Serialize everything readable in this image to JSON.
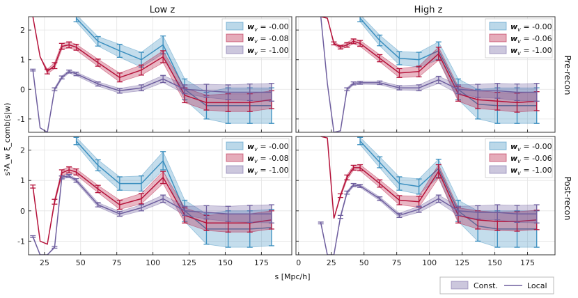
{
  "chart_data": {
    "type": "line",
    "column_titles": [
      "Low z",
      "High z"
    ],
    "row_labels": [
      "Pre-recon",
      "Post-recon"
    ],
    "xlabel": "s [Mpc/h]",
    "ylabel": "s²A_w ξ_comb(s|w)",
    "xlim_left": [
      14,
      196
    ],
    "xlim_right": [
      -2,
      196
    ],
    "ylim": [
      -1.45,
      2.45
    ],
    "xticks_left": [
      "25",
      "50",
      "75",
      "100",
      "125",
      "150",
      "175"
    ],
    "xticks_right": [
      "0",
      "25",
      "50",
      "75",
      "100",
      "125",
      "150",
      "175"
    ],
    "yticks": [
      "-1",
      "0",
      "1",
      "2"
    ],
    "grid": true,
    "bottom_legend": {
      "band_label": "Const.",
      "line_label": "Local"
    },
    "colors": {
      "blue": "#3b8fbf",
      "red": "#b5123a",
      "purple": "#6e5e9e"
    },
    "series_keys": [
      "blue",
      "red",
      "purple"
    ],
    "panels": [
      {
        "id": "low-pre",
        "legend": [
          "-0.00",
          "-0.08",
          "-1.00"
        ],
        "series": [
          {
            "key": "blue",
            "x": [
              47,
              62,
              77,
              92,
              107,
              122,
              137,
              152,
              167,
              182
            ],
            "y": [
              2.4,
              1.62,
              1.3,
              1.0,
              1.5,
              0.0,
              -0.55,
              -0.55,
              -0.55,
              -0.55
            ],
            "err": [
              0.12,
              0.16,
              0.22,
              0.25,
              0.3,
              0.35,
              0.45,
              0.6,
              0.6,
              0.6
            ]
          },
          {
            "key": "red",
            "x": [
              17,
              22,
              27,
              32,
              37,
              42,
              47,
              62,
              77,
              92,
              107,
              122,
              137,
              152,
              167,
              182
            ],
            "y": [
              2.45,
              1.1,
              0.6,
              0.8,
              1.45,
              1.5,
              1.42,
              0.9,
              0.4,
              0.65,
              1.1,
              -0.2,
              -0.45,
              -0.45,
              -0.45,
              -0.35
            ],
            "err": [
              0,
              0,
              0.08,
              0.1,
              0.1,
              0.1,
              0.1,
              0.12,
              0.15,
              0.17,
              0.2,
              0.25,
              0.25,
              0.3,
              0.3,
              0.3
            ]
          },
          {
            "key": "purple",
            "x": [
              17,
              22,
              27,
              32,
              37,
              42,
              47,
              62,
              77,
              92,
              107,
              122,
              137,
              152,
              167,
              182
            ],
            "y": [
              0.65,
              -1.3,
              -1.45,
              0.0,
              0.4,
              0.6,
              0.52,
              0.18,
              -0.05,
              0.05,
              0.35,
              0.0,
              -0.05,
              -0.1,
              -0.1,
              -0.1
            ],
            "err": [
              0.03,
              0,
              0,
              0.05,
              0.05,
              0.05,
              0.06,
              0.07,
              0.08,
              0.1,
              0.12,
              0.15,
              0.22,
              0.25,
              0.28,
              0.3
            ]
          }
        ]
      },
      {
        "id": "high-pre",
        "legend": [
          "-0.00",
          "-0.06",
          "-1.00"
        ],
        "series": [
          {
            "key": "blue",
            "x": [
              47,
              62,
              77,
              92,
              107,
              122,
              137,
              152,
              167,
              182
            ],
            "y": [
              2.4,
              1.65,
              1.05,
              1.0,
              1.3,
              0.0,
              -0.5,
              -0.55,
              -0.55,
              -0.55
            ],
            "err": [
              0.12,
              0.18,
              0.22,
              0.25,
              0.3,
              0.35,
              0.5,
              0.6,
              0.6,
              0.6
            ]
          },
          {
            "key": "red",
            "x": [
              17,
              22,
              27,
              32,
              37,
              42,
              47,
              62,
              77,
              92,
              107,
              122,
              137,
              152,
              167,
              182
            ],
            "y": [
              2.45,
              2.4,
              1.55,
              1.42,
              1.5,
              1.62,
              1.55,
              1.05,
              0.55,
              0.6,
              1.2,
              -0.15,
              -0.35,
              -0.4,
              -0.45,
              -0.4
            ],
            "err": [
              0,
              0,
              0.05,
              0.06,
              0.08,
              0.08,
              0.1,
              0.12,
              0.15,
              0.18,
              0.22,
              0.25,
              0.3,
              0.3,
              0.32,
              0.32
            ]
          },
          {
            "key": "purple",
            "x": [
              17,
              22,
              27,
              32,
              37,
              42,
              47,
              62,
              77,
              92,
              107,
              122,
              137,
              152,
              167,
              182
            ],
            "y": [
              2.45,
              0.2,
              -1.45,
              -1.4,
              0.0,
              0.2,
              0.22,
              0.22,
              0.05,
              0.05,
              0.32,
              0.0,
              -0.05,
              -0.05,
              -0.1,
              -0.1
            ],
            "err": [
              0,
              0,
              0,
              0,
              0.05,
              0.05,
              0.05,
              0.06,
              0.07,
              0.1,
              0.12,
              0.15,
              0.22,
              0.25,
              0.28,
              0.3
            ]
          }
        ]
      },
      {
        "id": "low-post",
        "legend": [
          "-0.00",
          "-0.08",
          "-1.00"
        ],
        "series": [
          {
            "key": "blue",
            "x": [
              47,
              62,
              77,
              92,
              107,
              122,
              137,
              152,
              167,
              182
            ],
            "y": [
              2.3,
              1.5,
              0.9,
              0.9,
              1.65,
              0.0,
              -0.6,
              -0.6,
              -0.6,
              -0.55
            ],
            "err": [
              0.12,
              0.18,
              0.22,
              0.25,
              0.3,
              0.35,
              0.5,
              0.6,
              0.6,
              0.6
            ]
          },
          {
            "key": "red",
            "x": [
              17,
              22,
              27,
              32,
              37,
              42,
              47,
              62,
              77,
              92,
              107,
              122,
              137,
              152,
              167,
              182
            ],
            "y": [
              0.8,
              -1.0,
              -1.1,
              0.3,
              1.25,
              1.35,
              1.28,
              0.72,
              0.2,
              0.4,
              1.1,
              -0.15,
              -0.4,
              -0.4,
              -0.4,
              -0.3
            ],
            "err": [
              0.05,
              0,
              0,
              0.08,
              0.1,
              0.1,
              0.1,
              0.12,
              0.15,
              0.17,
              0.2,
              0.25,
              0.25,
              0.3,
              0.3,
              0.3
            ]
          },
          {
            "key": "purple",
            "x": [
              17,
              22,
              27,
              32,
              37,
              42,
              47,
              62,
              77,
              92,
              107,
              122,
              137,
              152,
              167,
              182
            ],
            "y": [
              -0.85,
              -1.45,
              -1.45,
              -1.2,
              1.1,
              1.15,
              1.0,
              0.2,
              -0.1,
              0.1,
              0.4,
              0.0,
              -0.05,
              -0.1,
              -0.1,
              -0.1
            ],
            "err": [
              0.03,
              0,
              0,
              0.03,
              0.05,
              0.05,
              0.06,
              0.07,
              0.08,
              0.1,
              0.12,
              0.15,
              0.22,
              0.25,
              0.28,
              0.3
            ]
          }
        ]
      },
      {
        "id": "high-post",
        "legend": [
          "-0.00",
          "-0.06",
          "-1.00"
        ],
        "series": [
          {
            "key": "blue",
            "x": [
              47,
              62,
              77,
              92,
              107,
              122,
              137,
              152,
              167,
              182
            ],
            "y": [
              2.3,
              1.6,
              0.9,
              0.8,
              1.4,
              0.0,
              -0.5,
              -0.6,
              -0.6,
              -0.6
            ],
            "err": [
              0.12,
              0.18,
              0.22,
              0.25,
              0.3,
              0.35,
              0.5,
              0.6,
              0.6,
              0.6
            ]
          },
          {
            "key": "red",
            "x": [
              17,
              22,
              27,
              32,
              37,
              42,
              47,
              62,
              77,
              92,
              107,
              122,
              137,
              152,
              167,
              182
            ],
            "y": [
              2.45,
              2.4,
              -0.25,
              0.5,
              1.1,
              1.42,
              1.42,
              0.9,
              0.35,
              0.3,
              1.3,
              -0.15,
              -0.3,
              -0.35,
              -0.35,
              -0.3
            ],
            "err": [
              0,
              0,
              0,
              0.06,
              0.08,
              0.08,
              0.1,
              0.12,
              0.15,
              0.18,
              0.22,
              0.25,
              0.3,
              0.3,
              0.32,
              0.32
            ]
          },
          {
            "key": "purple",
            "x": [
              17,
              22,
              27,
              32,
              37,
              42,
              47,
              62,
              77,
              92,
              107,
              122,
              137,
              152,
              167,
              182
            ],
            "y": [
              -0.4,
              -1.45,
              -1.45,
              -0.2,
              0.6,
              0.85,
              0.82,
              0.4,
              -0.15,
              0.05,
              0.4,
              0.0,
              -0.05,
              -0.05,
              -0.1,
              -0.1
            ],
            "err": [
              0.03,
              0,
              0,
              0.05,
              0.05,
              0.05,
              0.05,
              0.06,
              0.07,
              0.1,
              0.12,
              0.15,
              0.22,
              0.25,
              0.28,
              0.3
            ]
          }
        ]
      }
    ]
  }
}
